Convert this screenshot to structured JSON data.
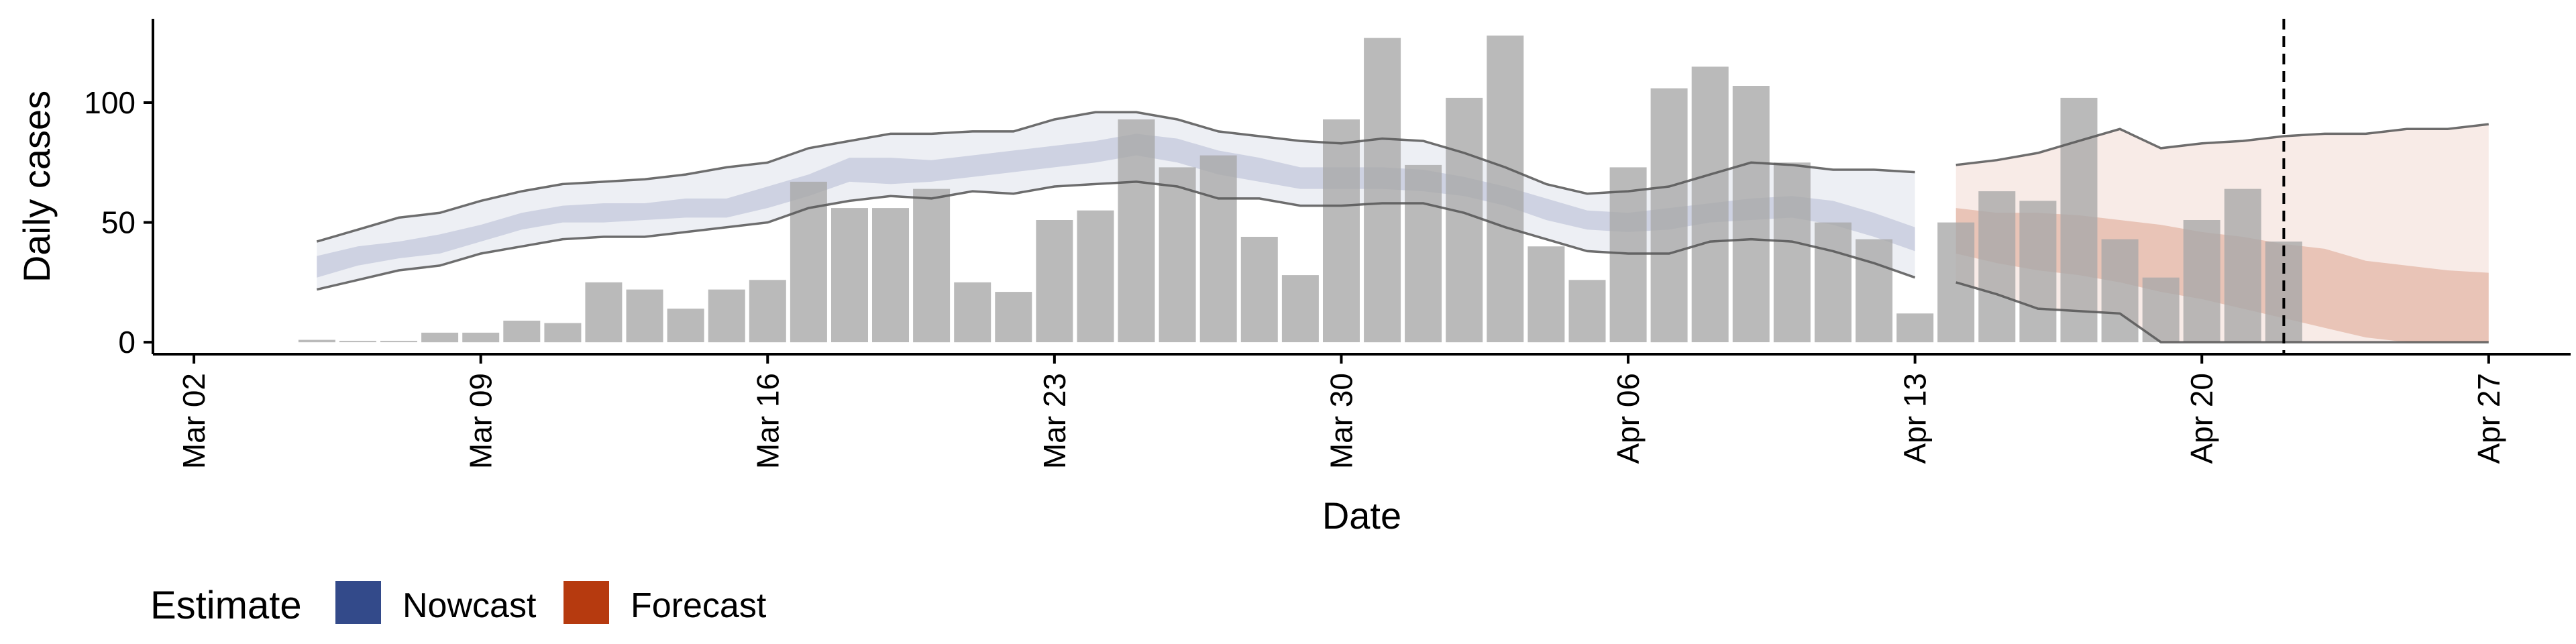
{
  "chart_data": {
    "type": "bar",
    "title": "",
    "xlabel": "Date",
    "ylabel": "Daily cases",
    "ylim": [
      -5,
      135
    ],
    "yticks": [
      0,
      50,
      100
    ],
    "xlim": [
      "2020-03-01",
      "2020-04-29"
    ],
    "xticks": [
      "Mar 02",
      "Mar 09",
      "Mar 16",
      "Mar 23",
      "Mar 30",
      "Apr 06",
      "Apr 13",
      "Apr 20",
      "Apr 27"
    ],
    "xtick_dates": [
      "2020-03-02",
      "2020-03-09",
      "2020-03-16",
      "2020-03-23",
      "2020-03-30",
      "2020-04-06",
      "2020-04-13",
      "2020-04-20",
      "2020-04-27"
    ],
    "grid": false,
    "cutoff_date": "2020-04-22",
    "bars": {
      "dates": [
        "2020-03-05",
        "2020-03-06",
        "2020-03-07",
        "2020-03-08",
        "2020-03-09",
        "2020-03-10",
        "2020-03-11",
        "2020-03-12",
        "2020-03-13",
        "2020-03-14",
        "2020-03-15",
        "2020-03-16",
        "2020-03-17",
        "2020-03-18",
        "2020-03-19",
        "2020-03-20",
        "2020-03-21",
        "2020-03-22",
        "2020-03-23",
        "2020-03-24",
        "2020-03-25",
        "2020-03-26",
        "2020-03-27",
        "2020-03-28",
        "2020-03-29",
        "2020-03-30",
        "2020-03-31",
        "2020-04-01",
        "2020-04-02",
        "2020-04-03",
        "2020-04-04",
        "2020-04-05",
        "2020-04-06",
        "2020-04-07",
        "2020-04-08",
        "2020-04-09",
        "2020-04-10",
        "2020-04-11",
        "2020-04-12",
        "2020-04-13",
        "2020-04-14",
        "2020-04-15",
        "2020-04-16",
        "2020-04-17",
        "2020-04-18",
        "2020-04-19",
        "2020-04-20",
        "2020-04-21",
        "2020-04-22"
      ],
      "values": [
        1,
        0,
        0,
        4,
        4,
        9,
        8,
        25,
        22,
        14,
        22,
        26,
        67,
        56,
        56,
        64,
        25,
        21,
        51,
        55,
        93,
        73,
        78,
        44,
        28,
        93,
        127,
        74,
        102,
        128,
        40,
        26,
        73,
        106,
        115,
        107,
        75,
        50,
        43,
        12,
        50,
        63,
        59,
        102,
        43,
        27,
        51,
        64,
        42
      ]
    },
    "legend": {
      "title": "Estimate",
      "placement": "bottom-left",
      "items": [
        {
          "name": "Nowcast",
          "color": "#334a8a"
        },
        {
          "name": "Forecast",
          "color": "#b63a0f"
        }
      ]
    },
    "nowcast": {
      "color": "#334a8a",
      "dates": [
        "2020-03-05",
        "2020-03-06",
        "2020-03-07",
        "2020-03-08",
        "2020-03-09",
        "2020-03-10",
        "2020-03-11",
        "2020-03-12",
        "2020-03-13",
        "2020-03-14",
        "2020-03-15",
        "2020-03-16",
        "2020-03-17",
        "2020-03-18",
        "2020-03-19",
        "2020-03-20",
        "2020-03-21",
        "2020-03-22",
        "2020-03-23",
        "2020-03-24",
        "2020-03-25",
        "2020-03-26",
        "2020-03-27",
        "2020-03-28",
        "2020-03-29",
        "2020-03-30",
        "2020-03-31",
        "2020-04-01",
        "2020-04-02",
        "2020-04-03",
        "2020-04-04",
        "2020-04-05",
        "2020-04-06",
        "2020-04-07",
        "2020-04-08",
        "2020-04-09",
        "2020-04-10",
        "2020-04-11",
        "2020-04-12",
        "2020-04-13"
      ],
      "lower90": [
        22,
        26,
        30,
        32,
        37,
        40,
        43,
        44,
        44,
        46,
        48,
        50,
        56,
        59,
        61,
        60,
        63,
        62,
        65,
        66,
        67,
        65,
        60,
        60,
        57,
        57,
        58,
        58,
        54,
        48,
        43,
        38,
        37,
        37,
        42,
        43,
        42,
        38,
        33,
        27
      ],
      "upper90": [
        42,
        47,
        52,
        54,
        59,
        63,
        66,
        67,
        68,
        70,
        73,
        75,
        81,
        84,
        87,
        87,
        88,
        88,
        93,
        96,
        96,
        93,
        88,
        86,
        84,
        83,
        85,
        84,
        79,
        73,
        66,
        62,
        63,
        65,
        70,
        75,
        74,
        72,
        72,
        71
      ],
      "lower50": [
        27,
        32,
        35,
        37,
        42,
        47,
        50,
        50,
        51,
        52,
        52,
        56,
        61,
        67,
        66,
        67,
        69,
        71,
        73,
        75,
        78,
        75,
        70,
        67,
        64,
        64,
        64,
        63,
        61,
        57,
        51,
        47,
        46,
        47,
        50,
        51,
        52,
        49,
        44,
        38
      ],
      "upper50": [
        36,
        40,
        42,
        45,
        49,
        54,
        57,
        58,
        58,
        60,
        60,
        65,
        70,
        77,
        77,
        76,
        78,
        80,
        82,
        84,
        87,
        85,
        80,
        77,
        73,
        73,
        73,
        72,
        69,
        65,
        60,
        55,
        54,
        56,
        58,
        60,
        61,
        59,
        54,
        48
      ]
    },
    "forecast": {
      "color": "#b63a0f",
      "dates": [
        "2020-04-14",
        "2020-04-15",
        "2020-04-16",
        "2020-04-17",
        "2020-04-18",
        "2020-04-19",
        "2020-04-20",
        "2020-04-21",
        "2020-04-22",
        "2020-04-23",
        "2020-04-24",
        "2020-04-25",
        "2020-04-26",
        "2020-04-27"
      ],
      "lower90": [
        25,
        20,
        14,
        13,
        12,
        0,
        0,
        0,
        0,
        0,
        0,
        0,
        0,
        0
      ],
      "upper90": [
        74,
        76,
        79,
        84,
        89,
        81,
        83,
        84,
        86,
        87,
        87,
        89,
        89,
        91
      ],
      "lower50": [
        37,
        33,
        30,
        28,
        25,
        21,
        18,
        14,
        10,
        6,
        2,
        0,
        0,
        0
      ],
      "upper50": [
        56,
        54,
        54,
        53,
        51,
        49,
        46,
        44,
        41,
        39,
        34,
        32,
        30,
        29
      ]
    }
  }
}
